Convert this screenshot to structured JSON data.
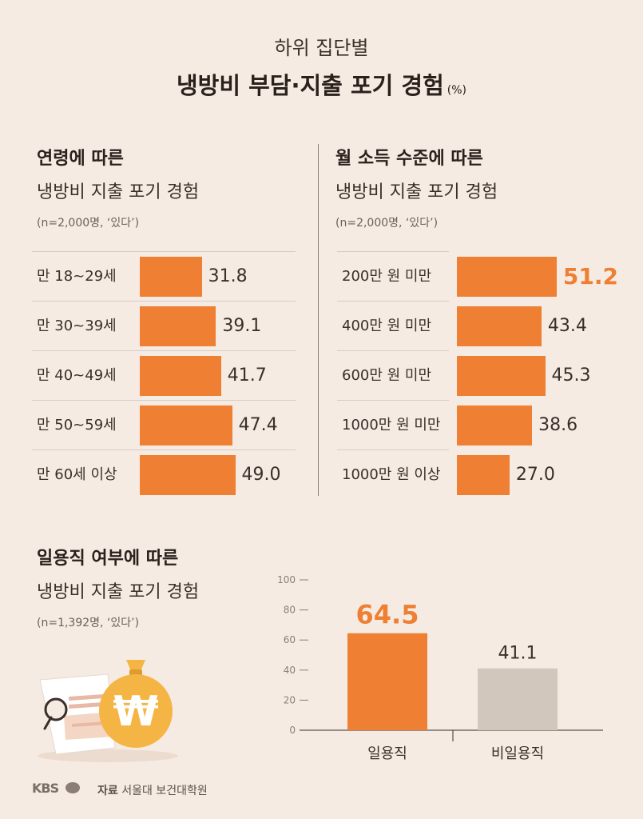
{
  "header": {
    "subtitle": "하위 집단별",
    "title": "냉방비 부담·지출 포기 경험",
    "unit": "(%)"
  },
  "colors": {
    "accent": "#ee7f33",
    "muted_bar": "#d2c7bd",
    "background": "#f6ebe2"
  },
  "chart_data": [
    {
      "type": "bar",
      "orientation": "horizontal",
      "title_bold": "연령에 따른",
      "title": "냉방비 지출 포기 경험",
      "note": "(n=2,000명, ‘있다’)",
      "categories": [
        "만 18~29세",
        "만 30~39세",
        "만 40~49세",
        "만 50~59세",
        "만 60세 이상"
      ],
      "values": [
        31.8,
        39.1,
        41.7,
        47.4,
        49.0
      ],
      "value_labels": [
        "31.8",
        "39.1",
        "41.7",
        "47.4",
        "49.0"
      ],
      "highlight_index": -1
    },
    {
      "type": "bar",
      "orientation": "horizontal",
      "title_bold": "월 소득 수준에 따른",
      "title": "냉방비 지출 포기 경험",
      "note": "(n=2,000명, ‘있다’)",
      "categories": [
        "200만 원 미만",
        "400만 원 미만",
        "600만 원 미만",
        "1000만 원 미만",
        "1000만 원 이상"
      ],
      "values": [
        51.2,
        43.4,
        45.3,
        38.6,
        27.0
      ],
      "value_labels": [
        "51.2",
        "43.4",
        "45.3",
        "38.6",
        "27.0"
      ],
      "highlight_index": 0
    },
    {
      "type": "bar",
      "orientation": "vertical",
      "title_bold": "일용직 여부에 따른",
      "title": "냉방비 지출 포기 경험",
      "note": "(n=1,392명, ‘있다’)",
      "categories": [
        "일용직",
        "비일용직"
      ],
      "values": [
        64.5,
        41.1
      ],
      "value_labels": [
        "64.5",
        "41.1"
      ],
      "ylim": [
        0,
        100
      ],
      "yticks": [
        "0",
        "20",
        "40",
        "60",
        "80",
        "100"
      ],
      "highlight_index": 0
    }
  ],
  "footer": {
    "logo": "KBS",
    "source_label": "자료",
    "source": "서울대 보건대학원"
  },
  "illustration": {
    "coin_symbol": "₩",
    "icons": [
      "money-bag-icon",
      "document-icon",
      "magnifier-icon"
    ]
  }
}
